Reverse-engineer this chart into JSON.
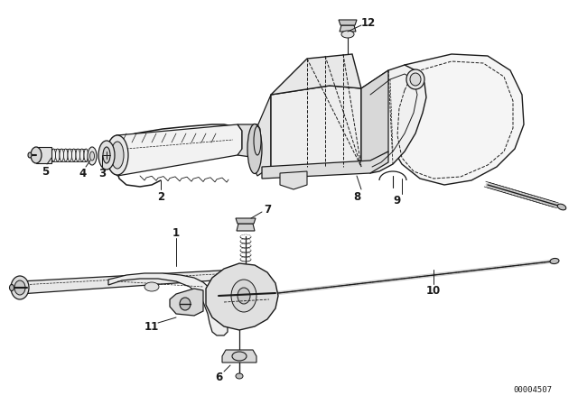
{
  "bg_color": "#ffffff",
  "line_color": "#1a1a1a",
  "part_number_text": "00004507",
  "figsize": [
    6.4,
    4.48
  ],
  "dpi": 100
}
